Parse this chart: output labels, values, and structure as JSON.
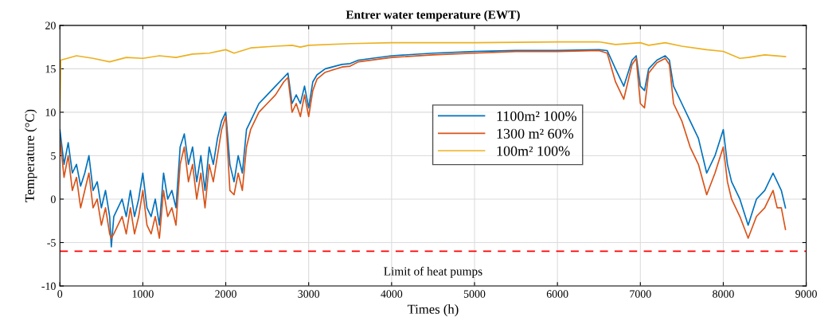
{
  "chart_data": {
    "type": "line",
    "title": "Entrer water temperature (EWT)",
    "xlabel": "Times (h)",
    "ylabel": "Temperature (°C)",
    "xlim": [
      0,
      9000
    ],
    "xticks": [
      0,
      1000,
      2000,
      3000,
      4000,
      5000,
      6000,
      7000,
      8000,
      9000
    ],
    "ylim": [
      -10,
      20
    ],
    "yticks": [
      -10,
      -5,
      0,
      5,
      10,
      15,
      20
    ],
    "grid": true,
    "legend": "center",
    "series": [
      {
        "name": "1100m² 100%",
        "color": "#0072bd",
        "x": [
          0,
          50,
          100,
          150,
          200,
          250,
          300,
          350,
          400,
          450,
          500,
          550,
          600,
          620,
          650,
          700,
          750,
          800,
          850,
          900,
          950,
          1000,
          1050,
          1100,
          1150,
          1200,
          1250,
          1300,
          1350,
          1400,
          1450,
          1500,
          1550,
          1600,
          1650,
          1700,
          1750,
          1800,
          1850,
          1900,
          1950,
          2000,
          2050,
          2100,
          2150,
          2200,
          2250,
          2300,
          2400,
          2500,
          2600,
          2700,
          2750,
          2800,
          2850,
          2900,
          2950,
          3000,
          3050,
          3100,
          3200,
          3400,
          3500,
          3600,
          4000,
          4500,
          5000,
          5500,
          6000,
          6500,
          6600,
          6700,
          6800,
          6900,
          6950,
          7000,
          7050,
          7100,
          7200,
          7300,
          7350,
          7400,
          7500,
          7600,
          7700,
          7800,
          7900,
          8000,
          8050,
          8100,
          8200,
          8300,
          8400,
          8500,
          8600,
          8650,
          8700,
          8750
        ],
        "values": [
          8,
          4,
          6.5,
          3,
          4,
          1.5,
          3,
          5,
          1,
          2,
          -1,
          1,
          -2,
          -5.5,
          -2,
          -1,
          0,
          -2,
          1,
          -2,
          0,
          3,
          -1,
          -2,
          0,
          -3,
          3,
          0,
          1,
          -1,
          6,
          7.5,
          4,
          6,
          2,
          5,
          1,
          6,
          4,
          7,
          9,
          10,
          4,
          2,
          5,
          3,
          8,
          9,
          11,
          12,
          13,
          14,
          14.5,
          11,
          12,
          11,
          13,
          10.5,
          13.5,
          14.3,
          15,
          15.5,
          15.6,
          16,
          16.5,
          16.8,
          17,
          17.1,
          17.1,
          17.2,
          17.1,
          15,
          13,
          16,
          16.5,
          13,
          12.5,
          15,
          16,
          16.5,
          16,
          13,
          11,
          9,
          7,
          3,
          5,
          8,
          4,
          2,
          0,
          -3,
          0,
          1,
          3,
          2,
          1,
          -1
        ]
      },
      {
        "name": "1300 m² 60%",
        "color": "#d95319",
        "x": [
          0,
          50,
          100,
          150,
          200,
          250,
          300,
          350,
          400,
          450,
          500,
          550,
          600,
          620,
          650,
          700,
          750,
          800,
          850,
          900,
          950,
          1000,
          1050,
          1100,
          1150,
          1200,
          1250,
          1300,
          1350,
          1400,
          1450,
          1500,
          1550,
          1600,
          1650,
          1700,
          1750,
          1800,
          1850,
          1900,
          1950,
          2000,
          2050,
          2100,
          2150,
          2200,
          2250,
          2300,
          2400,
          2500,
          2600,
          2700,
          2750,
          2800,
          2850,
          2900,
          2950,
          3000,
          3050,
          3100,
          3200,
          3400,
          3500,
          3600,
          4000,
          4500,
          5000,
          5500,
          6000,
          6500,
          6600,
          6700,
          6800,
          6900,
          6950,
          7000,
          7050,
          7100,
          7200,
          7300,
          7350,
          7400,
          7500,
          7600,
          7700,
          7800,
          7900,
          8000,
          8050,
          8100,
          8200,
          8300,
          8400,
          8500,
          8600,
          8650,
          8700,
          8750
        ],
        "values": [
          7,
          2.5,
          5,
          1,
          2.5,
          -1,
          1,
          3,
          -1,
          0,
          -3,
          -1,
          -4,
          -4.5,
          -4,
          -3,
          -2,
          -4,
          -1,
          -4,
          -2,
          1,
          -3,
          -4,
          -2,
          -4.5,
          1,
          -2,
          -1,
          -3,
          4,
          6,
          2,
          4,
          0,
          3,
          -1,
          4,
          2,
          5,
          8,
          9.5,
          1,
          0.5,
          3,
          1,
          6,
          8,
          10,
          11,
          12,
          13.5,
          14,
          10,
          11,
          9.5,
          12,
          9.5,
          12.5,
          13.8,
          14.6,
          15.2,
          15.3,
          15.8,
          16.3,
          16.6,
          16.8,
          17,
          17,
          17.1,
          16.8,
          13.5,
          11.5,
          15.5,
          16.2,
          11,
          10.5,
          14.5,
          15.7,
          16.2,
          15.5,
          11,
          9,
          6,
          4,
          0.5,
          3,
          6,
          2,
          0,
          -2,
          -4.5,
          -2,
          -1,
          1,
          -1,
          -1,
          -3.5
        ]
      },
      {
        "name": "100m² 100%",
        "color": "#edb120",
        "x": [
          0,
          10,
          200,
          400,
          600,
          800,
          1000,
          1200,
          1400,
          1600,
          1800,
          2000,
          2100,
          2300,
          2600,
          2800,
          2900,
          3000,
          3500,
          4000,
          5000,
          6000,
          6500,
          6700,
          7000,
          7100,
          7300,
          7500,
          7800,
          8000,
          8200,
          8300,
          8500,
          8750
        ],
        "values": [
          10,
          16,
          16.5,
          16.2,
          15.8,
          16.3,
          16.2,
          16.5,
          16.3,
          16.7,
          16.8,
          17.2,
          16.8,
          17.4,
          17.6,
          17.7,
          17.5,
          17.7,
          17.9,
          18,
          18,
          18.1,
          18.1,
          17.8,
          18,
          17.7,
          18,
          17.6,
          17.2,
          17,
          16.2,
          16.3,
          16.6,
          16.4
        ]
      }
    ],
    "ref_lines": [
      {
        "axis": "y",
        "value": -6,
        "label": "Limit of heat pumps",
        "color": "#ff0000",
        "line_style": "dashed"
      }
    ]
  }
}
